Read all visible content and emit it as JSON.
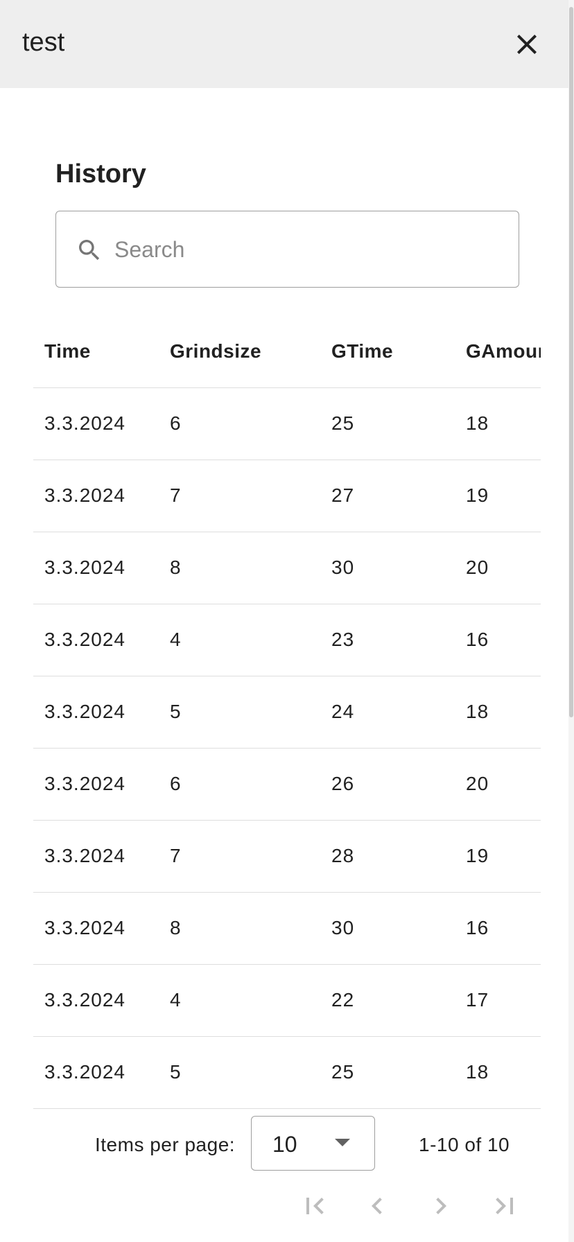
{
  "dialog": {
    "title": "test"
  },
  "history": {
    "heading": "History",
    "search": {
      "placeholder": "Search",
      "value": ""
    },
    "columns": [
      "Time",
      "Grindsize",
      "GTime",
      "GAmount"
    ],
    "rows": [
      [
        "3.3.2024",
        "6",
        "25",
        "18"
      ],
      [
        "3.3.2024",
        "7",
        "27",
        "19"
      ],
      [
        "3.3.2024",
        "8",
        "30",
        "20"
      ],
      [
        "3.3.2024",
        "4",
        "23",
        "16"
      ],
      [
        "3.3.2024",
        "5",
        "24",
        "18"
      ],
      [
        "3.3.2024",
        "6",
        "26",
        "20"
      ],
      [
        "3.3.2024",
        "7",
        "28",
        "19"
      ],
      [
        "3.3.2024",
        "8",
        "30",
        "16"
      ],
      [
        "3.3.2024",
        "4",
        "22",
        "17"
      ],
      [
        "3.3.2024",
        "5",
        "25",
        "18"
      ]
    ]
  },
  "paginator": {
    "items_per_page_label": "Items per page:",
    "page_size": "10",
    "range_label": "1-10 of 10"
  },
  "icons": {
    "close": "close-icon",
    "search": "search-icon",
    "first_page": "first-page-icon",
    "previous_page": "chevron-left-icon",
    "next_page": "chevron-right-icon",
    "last_page": "last-page-icon"
  },
  "colors": {
    "header_bg": "#eeeeee",
    "text": "#212121",
    "divider": "#dedede",
    "disabled_icon": "#bdbdbd"
  }
}
